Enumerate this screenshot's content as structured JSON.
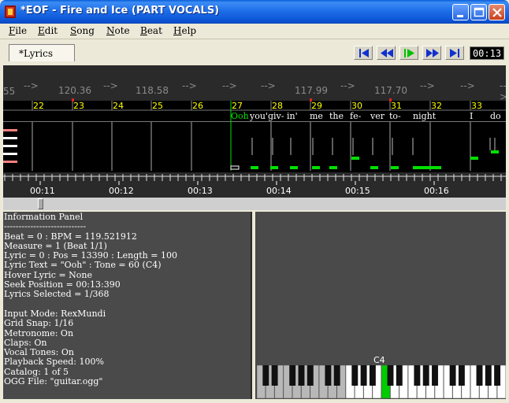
{
  "window": {
    "title": "*EOF - Fire and Ice (PART VOCALS)",
    "icon": "eof-app-icon"
  },
  "menu": [
    "File",
    "Edit",
    "Song",
    "Note",
    "Beat",
    "Help"
  ],
  "toolbar": {
    "tab_label": "*Lyrics",
    "transport": [
      "seek-start-icon",
      "rewind-icon",
      "play-icon",
      "fast-forward-icon",
      "seek-end-icon"
    ],
    "accent_green": "#00e000",
    "timer": "00:13"
  },
  "editor": {
    "bpm_left_fragment": "55",
    "bpm_values": [
      "120.36",
      "118.58",
      "117.99",
      "117.70"
    ],
    "bpm_arrow": "-->",
    "beat_numbers": [
      "22",
      "23",
      "24",
      "25",
      "26",
      "27",
      "28",
      "29",
      "30",
      "31",
      "32",
      "33"
    ],
    "lyrics": [
      "Ooh",
      "you'",
      "giv-",
      "in'",
      "me",
      "the",
      "fe-",
      "ver",
      "to-",
      "night",
      "I",
      "do"
    ],
    "time_labels": [
      "00:11",
      "00:12",
      "00:13",
      "00:14",
      "00:15",
      "00:16"
    ],
    "lane_colors": [
      "#ff8080",
      "#ffffff",
      "#ffffff",
      "#ffffff",
      "#ff8080"
    ]
  },
  "info_panel": {
    "heading": "Information Panel",
    "separator": "----------------------------",
    "lines_a": [
      "Beat = 0 : BPM = 119.521912",
      "Measure = 1 (Beat 1/1)",
      "Lyric = 0 : Pos = 13390 : Length = 100",
      "Lyric Text = \"Ooh\" : Tone = 60 (C4)",
      "Hover Lyric = None",
      "Seek Position = 00:13:390",
      "Lyrics Selected = 1/368"
    ],
    "lines_b": [
      "Input Mode: RexMundi",
      "Grid Snap: 1/16",
      "Metronome: On",
      "Claps: On",
      "Vocal Tones: On",
      "Playback Speed: 100%",
      "Catalog: 1 of 5",
      "OGG File: \"guitar.ogg\""
    ]
  },
  "piano": {
    "highlight_label": "C4",
    "highlight_color": "#00cc00"
  }
}
